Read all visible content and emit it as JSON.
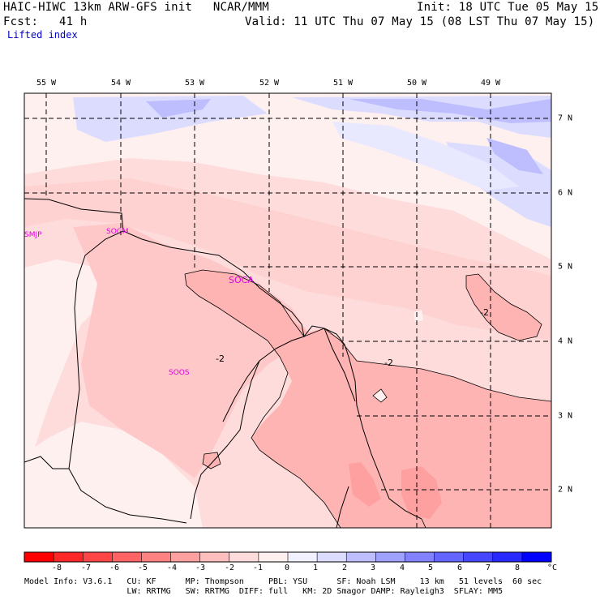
{
  "header": {
    "line1_left": "HAIC-HIWC 13km ARW-GFS init   NCAR/MMM",
    "line1_right": "Init: 18 UTC Tue 05 May 15",
    "line2_left": "Fcst:   41 h",
    "line2_right": "Valid: 11 UTC Thu 07 May 15 (08 LST Thu 07 May 15)",
    "field_name": "Lifted index"
  },
  "map": {
    "lon_labels": [
      "55 W",
      "54 W",
      "53 W",
      "52 W",
      "51 W",
      "50 W",
      "49 W"
    ],
    "lat_labels": [
      "7 N",
      "6 N",
      "5 N",
      "4 N",
      "3 N",
      "2 N"
    ],
    "stations": [
      "SMJP",
      "SOGM",
      "SOCA",
      "SOOS"
    ],
    "contour_labels": [
      "-2",
      "-2",
      "-2"
    ]
  },
  "colorbar": {
    "ticks": [
      "-8",
      "-7",
      "-6",
      "-5",
      "-4",
      "-3",
      "-2",
      "-1",
      "0",
      "1",
      "2",
      "3",
      "4",
      "5",
      "6",
      "7",
      "8"
    ],
    "unit": "°C",
    "colors": [
      "#ff0000",
      "#ff2828",
      "#ff4646",
      "#ff6464",
      "#ff8282",
      "#ffa0a0",
      "#ffbebe",
      "#ffdcdc",
      "#fff0f0",
      "#f0f0ff",
      "#dcdcff",
      "#bebeff",
      "#a0a0ff",
      "#8282ff",
      "#6464ff",
      "#4646ff",
      "#2828ff",
      "#0000ff"
    ]
  },
  "model_info": {
    "line1": "Model Info: V3.6.1   CU: KF      MP: Thompson     PBL: YSU      SF: Noah LSM     13 km   51 levels  60 sec",
    "line2": "                     LW: RRTMG   SW: RRTMG  DIFF: full   KM: 2D Smagor DAMP: Rayleigh3  SFLAY: MM5"
  }
}
